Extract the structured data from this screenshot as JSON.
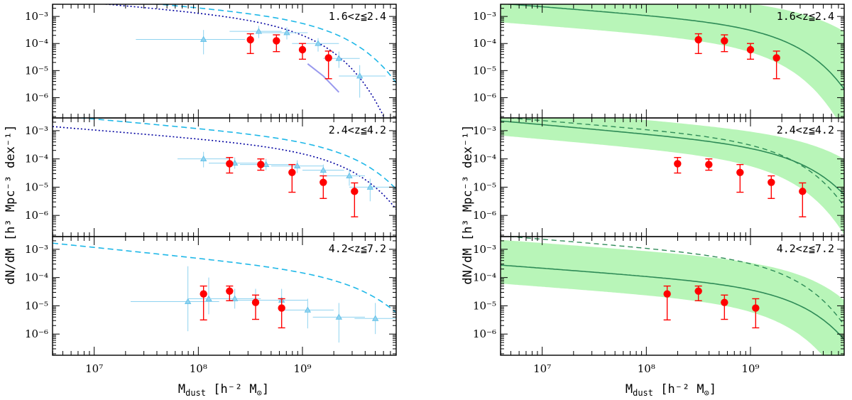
{
  "figure": {
    "ylabel": "dN/dM [h³ Mpc⁻³ dex⁻¹]",
    "xlabel": "M_dust [h⁻² M_⊙]",
    "xlabel_main": "M",
    "xlabel_sub": "dust",
    "xlabel_rest": " [h⁻² M",
    "xlabel_sun": "⊙",
    "xlabel_close": "]",
    "x_tick_labels": [
      "10⁷",
      "10⁸",
      "10⁹"
    ],
    "y_tick_labels": [
      "10⁻³",
      "10⁻⁴",
      "10⁻⁵",
      "10⁻⁶"
    ]
  },
  "colors": {
    "points": "#ff0000",
    "cyan": "#1fb8e8",
    "navy": "#0000a0",
    "lavender": "#9999ee",
    "green_band": "#b8f5b8",
    "green_line": "#2e8b57"
  },
  "chart_data": [
    {
      "type": "scatter",
      "panel": "left-top",
      "title": "1.6<z≦2.4",
      "xlim_log10": [
        6.6,
        9.9
      ],
      "ylim_log10": [
        -6.75,
        -2.55
      ],
      "points": [
        {
          "x": 8.5,
          "y": -3.86,
          "lo": -4.37,
          "hi": -3.64
        },
        {
          "x": 8.75,
          "y": -3.9,
          "lo": -4.3,
          "hi": -3.68
        },
        {
          "x": 9.0,
          "y": -4.23,
          "lo": -4.58,
          "hi": -4.0
        },
        {
          "x": 9.25,
          "y": -4.53,
          "lo": -5.3,
          "hi": -4.28
        }
      ],
      "tri_points": [
        {
          "x": 8.05,
          "y": -3.85,
          "xlo": 7.4,
          "xhi": 8.45,
          "lo": -4.4,
          "hi": -3.5
        },
        {
          "x": 8.58,
          "y": -3.55,
          "xlo": 8.3,
          "xhi": 8.8,
          "lo": -3.8,
          "hi": -3.35
        },
        {
          "x": 8.85,
          "y": -3.6,
          "xlo": 8.6,
          "xhi": 9.05,
          "lo": -3.85,
          "hi": -3.4
        },
        {
          "x": 9.15,
          "y": -4.0,
          "xlo": 8.9,
          "xhi": 9.35,
          "lo": -4.3,
          "hi": -3.8
        },
        {
          "x": 9.35,
          "y": -4.55,
          "xlo": 9.2,
          "xhi": 9.55,
          "lo": -4.9,
          "hi": -4.3
        },
        {
          "x": 9.55,
          "y": -5.2,
          "xlo": 9.35,
          "xhi": 9.8,
          "lo": -6.0,
          "hi": -4.8
        }
      ],
      "series": [
        {
          "name": "cyan-dashed",
          "phi": -3.05,
          "mstar": 9.2,
          "alpha": 0.65
        },
        {
          "name": "navy-dotted",
          "phi": -3.12,
          "mstar": 8.9,
          "alpha": 0.65
        },
        {
          "name": "lavender",
          "segment": [
            [
              9.05,
              -4.75
            ],
            [
              9.2,
              -5.2
            ],
            [
              9.35,
              -5.8
            ]
          ]
        }
      ]
    },
    {
      "type": "scatter",
      "panel": "left-middle",
      "title": "2.4<z≦4.2",
      "xlim_log10": [
        6.6,
        9.9
      ],
      "ylim_log10": [
        -6.75,
        -2.55
      ],
      "points": [
        {
          "x": 8.3,
          "y": -4.17,
          "lo": -4.5,
          "hi": -3.95
        },
        {
          "x": 8.6,
          "y": -4.2,
          "lo": -4.4,
          "hi": -4.0
        },
        {
          "x": 8.9,
          "y": -4.48,
          "lo": -5.18,
          "hi": -4.2
        },
        {
          "x": 9.2,
          "y": -4.83,
          "lo": -5.4,
          "hi": -4.6
        },
        {
          "x": 9.5,
          "y": -5.15,
          "lo": -6.05,
          "hi": -4.85
        }
      ],
      "tri_points": [
        {
          "x": 8.05,
          "y": -4.0,
          "xlo": 7.8,
          "xhi": 8.3,
          "lo": -4.3,
          "hi": -3.75
        },
        {
          "x": 8.35,
          "y": -4.15,
          "xlo": 8.1,
          "xhi": 8.6,
          "lo": -4.35,
          "hi": -3.95
        },
        {
          "x": 8.65,
          "y": -4.2,
          "xlo": 8.4,
          "xhi": 8.9,
          "lo": -4.4,
          "hi": -4.0
        },
        {
          "x": 8.95,
          "y": -4.25,
          "xlo": 8.7,
          "xhi": 9.2,
          "lo": -4.5,
          "hi": -4.05
        },
        {
          "x": 9.2,
          "y": -4.4,
          "xlo": 9.0,
          "xhi": 9.4,
          "lo": -4.7,
          "hi": -4.2
        },
        {
          "x": 9.45,
          "y": -4.6,
          "xlo": 9.2,
          "xhi": 9.6,
          "lo": -4.95,
          "hi": -4.35
        },
        {
          "x": 9.65,
          "y": -5.0,
          "xlo": 9.45,
          "xhi": 9.85,
          "lo": -5.5,
          "hi": -4.7
        }
      ],
      "series": [
        {
          "name": "cyan-dashed",
          "phi": -3.35,
          "mstar": 9.35,
          "alpha": 0.65
        },
        {
          "name": "navy-dotted",
          "phi": -3.65,
          "mstar": 9.25,
          "alpha": 0.6
        }
      ]
    },
    {
      "type": "scatter",
      "panel": "left-bottom",
      "title": "4.2<z≦7.2",
      "xlim_log10": [
        6.6,
        9.9
      ],
      "ylim_log10": [
        -6.75,
        -2.55
      ],
      "points": [
        {
          "x": 8.05,
          "y": -4.58,
          "lo": -5.5,
          "hi": -4.3
        },
        {
          "x": 8.3,
          "y": -4.48,
          "lo": -4.82,
          "hi": -4.3
        },
        {
          "x": 8.55,
          "y": -4.88,
          "lo": -5.48,
          "hi": -4.62
        },
        {
          "x": 8.8,
          "y": -5.08,
          "lo": -5.78,
          "hi": -4.75
        }
      ],
      "tri_points": [
        {
          "x": 7.9,
          "y": -4.85,
          "xlo": 7.35,
          "xhi": 8.2,
          "lo": -5.9,
          "hi": -3.6
        },
        {
          "x": 8.1,
          "y": -4.75,
          "xlo": 7.9,
          "xhi": 8.4,
          "lo": -5.3,
          "hi": -4.0
        },
        {
          "x": 8.35,
          "y": -4.75,
          "xlo": 8.1,
          "xhi": 8.6,
          "lo": -5.1,
          "hi": -4.4
        },
        {
          "x": 8.55,
          "y": -4.8,
          "xlo": 8.3,
          "xhi": 8.8,
          "lo": -5.25,
          "hi": -4.4
        },
        {
          "x": 8.8,
          "y": -4.8,
          "xlo": 8.55,
          "xhi": 9.05,
          "lo": -5.3,
          "hi": -4.4
        },
        {
          "x": 9.05,
          "y": -5.15,
          "xlo": 8.8,
          "xhi": 9.3,
          "lo": -5.8,
          "hi": -4.75
        },
        {
          "x": 9.35,
          "y": -5.4,
          "xlo": 9.1,
          "xhi": 9.6,
          "lo": -6.3,
          "hi": -4.9
        },
        {
          "x": 9.7,
          "y": -5.45,
          "xlo": 9.5,
          "xhi": 9.9,
          "lo": -6.0,
          "hi": -4.9
        }
      ],
      "series": [
        {
          "name": "cyan-dashed",
          "phi": -3.85,
          "mstar": 9.45,
          "alpha": 0.75
        }
      ]
    },
    {
      "type": "scatter",
      "panel": "right-top",
      "title": "1.6<z≦2.4",
      "xlim_log10": [
        6.6,
        9.9
      ],
      "ylim_log10": [
        -6.75,
        -2.55
      ],
      "points": [
        {
          "x": 8.5,
          "y": -3.86,
          "lo": -4.37,
          "hi": -3.64
        },
        {
          "x": 8.75,
          "y": -3.9,
          "lo": -4.3,
          "hi": -3.68
        },
        {
          "x": 9.0,
          "y": -4.23,
          "lo": -4.58,
          "hi": -4.0
        },
        {
          "x": 9.25,
          "y": -4.53,
          "lo": -5.3,
          "hi": -4.28
        }
      ],
      "series": [
        {
          "name": "green-solid",
          "phi": -3.3,
          "mstar": 9.2,
          "alpha": 0.6
        },
        {
          "name": "green-band",
          "phi_lo": -3.95,
          "phi_hi": -2.6,
          "mstar_lo": 9.05,
          "mstar_hi": 9.6,
          "alpha": 0.6
        }
      ]
    },
    {
      "type": "scatter",
      "panel": "right-middle",
      "title": "2.4<z≦4.2",
      "xlim_log10": [
        6.6,
        9.9
      ],
      "ylim_log10": [
        -6.75,
        -2.55
      ],
      "points": [
        {
          "x": 8.3,
          "y": -4.17,
          "lo": -4.5,
          "hi": -3.95
        },
        {
          "x": 8.6,
          "y": -4.2,
          "lo": -4.4,
          "hi": -4.0
        },
        {
          "x": 8.9,
          "y": -4.48,
          "lo": -5.18,
          "hi": -4.2
        },
        {
          "x": 9.2,
          "y": -4.83,
          "lo": -5.4,
          "hi": -4.6
        },
        {
          "x": 9.5,
          "y": -5.15,
          "lo": -6.05,
          "hi": -4.85
        }
      ],
      "series": [
        {
          "name": "green-solid",
          "phi": -3.55,
          "mstar": 9.35,
          "alpha": 0.65
        },
        {
          "name": "green-dashed",
          "phi": -3.3,
          "mstar": 9.2,
          "alpha": 0.6
        },
        {
          "name": "green-band",
          "phi_lo": -4.0,
          "phi_hi": -3.15,
          "mstar_lo": 9.15,
          "mstar_hi": 9.65,
          "alpha": 0.65
        }
      ]
    },
    {
      "type": "scatter",
      "panel": "right-bottom",
      "title": "4.2<z≦7.2",
      "xlim_log10": [
        6.6,
        9.9
      ],
      "ylim_log10": [
        -6.75,
        -2.55
      ],
      "points": [
        {
          "x": 8.2,
          "y": -4.58,
          "lo": -5.5,
          "hi": -4.3
        },
        {
          "x": 8.5,
          "y": -4.48,
          "lo": -4.82,
          "hi": -4.3
        },
        {
          "x": 8.75,
          "y": -4.88,
          "lo": -5.48,
          "hi": -4.62
        },
        {
          "x": 9.05,
          "y": -5.08,
          "lo": -5.78,
          "hi": -4.75
        }
      ],
      "series": [
        {
          "name": "green-solid",
          "phi": -4.3,
          "mstar": 9.3,
          "alpha": 0.55
        },
        {
          "name": "green-dashed",
          "phi": -3.3,
          "mstar": 9.2,
          "alpha": 0.6
        },
        {
          "name": "green-band",
          "phi_lo": -4.9,
          "phi_hi": -3.45,
          "mstar_lo": 9.1,
          "mstar_hi": 9.45,
          "alpha": 0.55
        }
      ]
    }
  ]
}
